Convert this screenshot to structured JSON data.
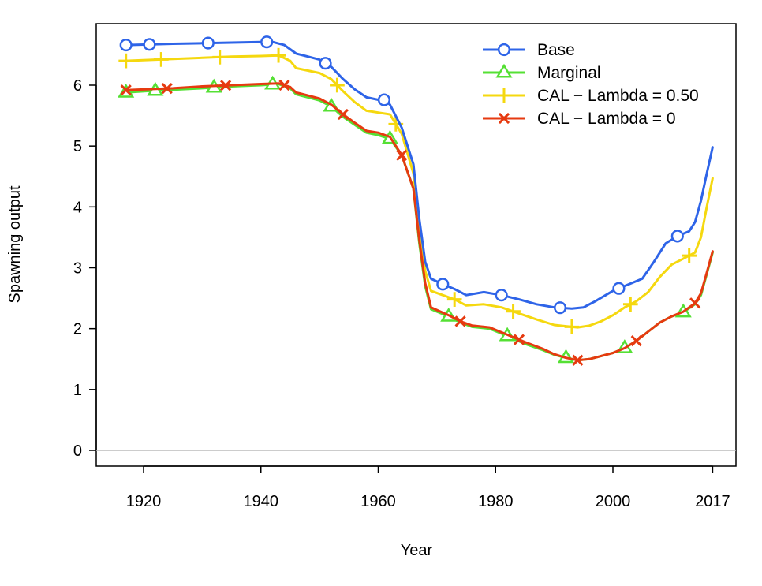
{
  "chart_data": {
    "type": "line",
    "title": "",
    "xlabel": "Year",
    "ylabel": "Spawning output",
    "xlim": [
      1916,
      2020
    ],
    "ylim": [
      -0.35,
      6.9
    ],
    "x_ticks": [
      1920,
      1940,
      1960,
      1980,
      2000,
      2017
    ],
    "y_ticks": [
      0,
      1,
      2,
      3,
      4,
      5,
      6
    ],
    "reference_line": 0,
    "legend_position": "top-right",
    "grid": false,
    "series": [
      {
        "name": "Base",
        "color": "#2E64E8",
        "marker": "circle",
        "points": [
          [
            1917,
            6.66
          ],
          [
            1925,
            6.68
          ],
          [
            1930,
            6.69
          ],
          [
            1935,
            6.7
          ],
          [
            1940,
            6.71
          ],
          [
            1942,
            6.71
          ],
          [
            1944,
            6.66
          ],
          [
            1946,
            6.52
          ],
          [
            1948,
            6.47
          ],
          [
            1950,
            6.42
          ],
          [
            1952,
            6.3
          ],
          [
            1954,
            6.1
          ],
          [
            1956,
            5.93
          ],
          [
            1958,
            5.8
          ],
          [
            1960,
            5.76
          ],
          [
            1961,
            5.76
          ],
          [
            1962,
            5.68
          ],
          [
            1964,
            5.3
          ],
          [
            1966,
            4.7
          ],
          [
            1967,
            3.8
          ],
          [
            1968,
            3.1
          ],
          [
            1969,
            2.82
          ],
          [
            1971,
            2.73
          ],
          [
            1973,
            2.65
          ],
          [
            1975,
            2.55
          ],
          [
            1978,
            2.6
          ],
          [
            1981,
            2.55
          ],
          [
            1984,
            2.48
          ],
          [
            1987,
            2.4
          ],
          [
            1990,
            2.35
          ],
          [
            1993,
            2.33
          ],
          [
            1995,
            2.35
          ],
          [
            1997,
            2.45
          ],
          [
            2000,
            2.62
          ],
          [
            2002,
            2.7
          ],
          [
            2005,
            2.82
          ],
          [
            2007,
            3.1
          ],
          [
            2009,
            3.4
          ],
          [
            2011,
            3.52
          ],
          [
            2013,
            3.6
          ],
          [
            2014,
            3.75
          ],
          [
            2015,
            4.1
          ],
          [
            2016,
            4.55
          ],
          [
            2017,
            4.98
          ]
        ],
        "marker_x": [
          1917,
          1921,
          1931,
          1941,
          1951,
          1961,
          1971,
          1981,
          1991,
          2001,
          2011
        ]
      },
      {
        "name": "Marginal",
        "color": "#55E034",
        "marker": "triangle",
        "points": [
          [
            1917,
            5.88
          ],
          [
            1922,
            5.91
          ],
          [
            1930,
            5.95
          ],
          [
            1935,
            5.98
          ],
          [
            1940,
            6.0
          ],
          [
            1943,
            6.02
          ],
          [
            1945,
            5.95
          ],
          [
            1946,
            5.85
          ],
          [
            1948,
            5.8
          ],
          [
            1950,
            5.75
          ],
          [
            1952,
            5.65
          ],
          [
            1954,
            5.48
          ],
          [
            1956,
            5.35
          ],
          [
            1958,
            5.22
          ],
          [
            1960,
            5.18
          ],
          [
            1962,
            5.12
          ],
          [
            1964,
            4.85
          ],
          [
            1966,
            4.3
          ],
          [
            1967,
            3.4
          ],
          [
            1968,
            2.7
          ],
          [
            1969,
            2.32
          ],
          [
            1972,
            2.2
          ],
          [
            1974,
            2.1
          ],
          [
            1976,
            2.03
          ],
          [
            1979,
            2.0
          ],
          [
            1982,
            1.88
          ],
          [
            1985,
            1.75
          ],
          [
            1988,
            1.65
          ],
          [
            1990,
            1.57
          ],
          [
            1992,
            1.52
          ],
          [
            1994,
            1.48
          ],
          [
            1996,
            1.5
          ],
          [
            1998,
            1.55
          ],
          [
            2000,
            1.6
          ],
          [
            2002,
            1.68
          ],
          [
            2004,
            1.8
          ],
          [
            2006,
            1.95
          ],
          [
            2008,
            2.1
          ],
          [
            2010,
            2.2
          ],
          [
            2012,
            2.27
          ],
          [
            2014,
            2.4
          ],
          [
            2015,
            2.55
          ],
          [
            2016,
            2.9
          ],
          [
            2017,
            3.25
          ]
        ],
        "marker_x": [
          1917,
          1922,
          1932,
          1942,
          1952,
          1962,
          1972,
          1982,
          1992,
          2002,
          2012
        ]
      },
      {
        "name": "CAL − Lambda = 0.50",
        "color": "#F5D80F",
        "marker": "plus",
        "points": [
          [
            1917,
            6.4
          ],
          [
            1925,
            6.43
          ],
          [
            1930,
            6.45
          ],
          [
            1935,
            6.47
          ],
          [
            1940,
            6.48
          ],
          [
            1943,
            6.49
          ],
          [
            1945,
            6.4
          ],
          [
            1946,
            6.28
          ],
          [
            1948,
            6.24
          ],
          [
            1950,
            6.2
          ],
          [
            1952,
            6.1
          ],
          [
            1954,
            5.9
          ],
          [
            1956,
            5.72
          ],
          [
            1958,
            5.58
          ],
          [
            1960,
            5.55
          ],
          [
            1962,
            5.52
          ],
          [
            1964,
            5.2
          ],
          [
            1966,
            4.55
          ],
          [
            1967,
            3.6
          ],
          [
            1968,
            2.95
          ],
          [
            1969,
            2.62
          ],
          [
            1971,
            2.55
          ],
          [
            1973,
            2.48
          ],
          [
            1975,
            2.38
          ],
          [
            1978,
            2.4
          ],
          [
            1981,
            2.35
          ],
          [
            1984,
            2.25
          ],
          [
            1987,
            2.15
          ],
          [
            1990,
            2.06
          ],
          [
            1992,
            2.04
          ],
          [
            1994,
            2.02
          ],
          [
            1996,
            2.05
          ],
          [
            1998,
            2.12
          ],
          [
            2000,
            2.22
          ],
          [
            2002,
            2.35
          ],
          [
            2004,
            2.45
          ],
          [
            2006,
            2.6
          ],
          [
            2008,
            2.85
          ],
          [
            2010,
            3.05
          ],
          [
            2012,
            3.15
          ],
          [
            2014,
            3.25
          ],
          [
            2015,
            3.5
          ],
          [
            2016,
            4.0
          ],
          [
            2017,
            4.47
          ]
        ],
        "marker_x": [
          1917,
          1923,
          1933,
          1943,
          1953,
          1963,
          1973,
          1983,
          1993,
          2003,
          2013
        ]
      },
      {
        "name": "CAL − Lambda = 0",
        "color": "#E63A10",
        "marker": "cross",
        "points": [
          [
            1917,
            5.92
          ],
          [
            1925,
            5.95
          ],
          [
            1930,
            5.98
          ],
          [
            1935,
            6.0
          ],
          [
            1940,
            6.02
          ],
          [
            1943,
            6.03
          ],
          [
            1945,
            5.97
          ],
          [
            1946,
            5.88
          ],
          [
            1948,
            5.83
          ],
          [
            1950,
            5.78
          ],
          [
            1952,
            5.68
          ],
          [
            1954,
            5.52
          ],
          [
            1956,
            5.38
          ],
          [
            1958,
            5.25
          ],
          [
            1960,
            5.22
          ],
          [
            1962,
            5.15
          ],
          [
            1964,
            4.85
          ],
          [
            1966,
            4.3
          ],
          [
            1967,
            3.45
          ],
          [
            1968,
            2.75
          ],
          [
            1969,
            2.35
          ],
          [
            1972,
            2.22
          ],
          [
            1974,
            2.12
          ],
          [
            1976,
            2.05
          ],
          [
            1979,
            2.02
          ],
          [
            1982,
            1.9
          ],
          [
            1985,
            1.78
          ],
          [
            1988,
            1.67
          ],
          [
            1990,
            1.58
          ],
          [
            1992,
            1.52
          ],
          [
            1994,
            1.48
          ],
          [
            1996,
            1.5
          ],
          [
            1998,
            1.55
          ],
          [
            2000,
            1.6
          ],
          [
            2002,
            1.68
          ],
          [
            2004,
            1.8
          ],
          [
            2006,
            1.95
          ],
          [
            2008,
            2.1
          ],
          [
            2010,
            2.2
          ],
          [
            2012,
            2.28
          ],
          [
            2014,
            2.42
          ],
          [
            2015,
            2.58
          ],
          [
            2016,
            2.92
          ],
          [
            2017,
            3.27
          ]
        ],
        "marker_x": [
          1917,
          1924,
          1934,
          1944,
          1954,
          1964,
          1974,
          1984,
          1994,
          2004,
          2014
        ]
      }
    ]
  }
}
